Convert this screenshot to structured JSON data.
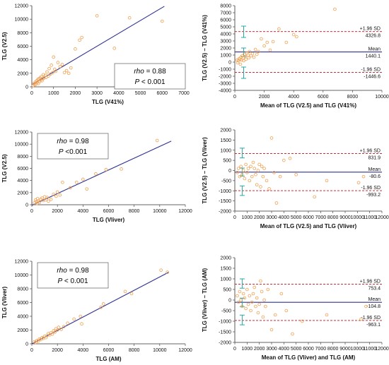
{
  "colors": {
    "line": "#2e3192",
    "points": "#f0a050",
    "sd_line": "#c0121c",
    "ci_bar": "#2aa7a0",
    "axis": "#333333",
    "background": "#ffffff"
  },
  "chart_data": [
    {
      "id": "scatter-1",
      "type": "scatter",
      "xlabel": "TLG (V41%)",
      "ylabel": "TLG (V2.5)",
      "xlim": [
        0,
        7000
      ],
      "ylim": [
        0,
        12000
      ],
      "xticks": [
        "0",
        "1000",
        "2000",
        "3000",
        "4000",
        "5000",
        "6000",
        "7000"
      ],
      "yticks": [
        "0",
        "2000",
        "4000",
        "6000",
        "8000",
        "10000",
        "12000"
      ],
      "annotation": {
        "rho_label": "rho",
        "rho_value": "= 0.88",
        "p_label": "P",
        "p_value": "< 0.001"
      },
      "regression": {
        "x": [
          0,
          6100
        ],
        "y": [
          300,
          11900
        ]
      },
      "points": {
        "x": [
          60,
          100,
          140,
          160,
          190,
          220,
          250,
          280,
          300,
          330,
          360,
          380,
          400,
          430,
          470,
          500,
          530,
          560,
          620,
          660,
          700,
          760,
          800,
          860,
          900,
          960,
          1000,
          1050,
          1100,
          1200,
          1300,
          1400,
          1500,
          1600,
          1700,
          1800,
          2000,
          2200,
          2300,
          3000,
          3800,
          4500,
          6000
        ],
        "y": [
          200,
          500,
          300,
          700,
          400,
          900,
          650,
          1100,
          500,
          1200,
          800,
          1300,
          1000,
          1500,
          900,
          1200,
          1800,
          1300,
          1700,
          1400,
          2200,
          1600,
          2700,
          1900,
          3200,
          2100,
          4400,
          2600,
          2300,
          3600,
          3000,
          3300,
          2100,
          2400,
          2000,
          2800,
          5600,
          6900,
          7300,
          10500,
          5700,
          10200,
          9700
        ]
      }
    },
    {
      "id": "ba-1",
      "type": "scatter",
      "xlabel": "Mean of TLG (V2.5) and TLG (V41%)",
      "ylabel": "TLG (V2.5) – TLG (V41%)",
      "xlim": [
        0,
        10000
      ],
      "ylim": [
        -4000,
        8000
      ],
      "xticks": [
        "0",
        "2000",
        "4000",
        "6000",
        "8000",
        "10000"
      ],
      "yticks": [
        "-4000",
        "-3000",
        "-2000",
        "-1000",
        "0",
        "1000",
        "2000",
        "3000",
        "4000",
        "5000",
        "6000",
        "7000",
        "8000"
      ],
      "mean": 1440.1,
      "upper": 4326.8,
      "lower": -1446.6,
      "labels": {
        "upper_name": "+1.96 SD",
        "upper_value": "4326.8",
        "mean_name": "Mean",
        "mean_value": "1440.1",
        "lower_name": "-1.96 SD",
        "lower_value": "-1446.6"
      },
      "ci_x": 600,
      "ci": [
        [
          3500,
          5100
        ],
        [
          800,
          2000
        ],
        [
          -2300,
          -700
        ]
      ],
      "points": {
        "x": [
          150,
          200,
          250,
          300,
          350,
          380,
          420,
          460,
          500,
          560,
          600,
          650,
          700,
          760,
          820,
          900,
          950,
          1000,
          1100,
          1200,
          1300,
          1400,
          1500,
          1600,
          1800,
          2000,
          2200,
          2400,
          2600,
          3000,
          3500,
          4000,
          4200,
          6800
        ],
        "y": [
          300,
          -100,
          200,
          500,
          400,
          -300,
          700,
          300,
          900,
          600,
          200,
          1100,
          800,
          400,
          1300,
          1000,
          600,
          1500,
          900,
          1200,
          700,
          1800,
          1100,
          1500,
          3300,
          2300,
          2800,
          1700,
          2900,
          4700,
          2800,
          3900,
          3600,
          7500
        ]
      }
    },
    {
      "id": "scatter-2",
      "type": "scatter",
      "xlabel": "TLG (Vliver)",
      "ylabel": "TLG (V2.5)",
      "xlim": [
        0,
        12000
      ],
      "ylim": [
        0,
        12000
      ],
      "xticks": [
        "0",
        "2000",
        "4000",
        "6000",
        "8000",
        "10000",
        "12000"
      ],
      "yticks": [
        "0",
        "2000",
        "4000",
        "6000",
        "8000",
        "10000",
        "12000"
      ],
      "annotation": {
        "rho_label": "rho",
        "rho_value": "= 0.98",
        "p_label": "P",
        "p_value": "<0.001"
      },
      "regression": {
        "x": [
          0,
          10900
        ],
        "y": [
          -100,
          10500
        ]
      },
      "points": {
        "x": [
          200,
          300,
          350,
          400,
          450,
          500,
          600,
          700,
          800,
          900,
          1000,
          1100,
          1200,
          1300,
          1500,
          1700,
          1900,
          2000,
          2200,
          2400,
          3000,
          3500,
          4000,
          4300,
          5000,
          5800,
          7000,
          9800
        ],
        "y": [
          300,
          800,
          500,
          200,
          1000,
          600,
          400,
          900,
          1100,
          700,
          1300,
          800,
          1200,
          600,
          900,
          1700,
          1400,
          2100,
          1600,
          3700,
          2800,
          3700,
          4200,
          2600,
          5100,
          5800,
          5900,
          10600
        ]
      }
    },
    {
      "id": "ba-2",
      "type": "scatter",
      "xlabel": "Mean of TLG (V2.5) and TLG (Vliver)",
      "ylabel": "TLG (V2.5) – TLG (Vliver)",
      "xlim": [
        0,
        12000
      ],
      "ylim": [
        -2000,
        2000
      ],
      "xticks": [
        "0",
        "1000",
        "2000",
        "3000",
        "4000",
        "5000",
        "6000",
        "7000",
        "8000",
        "9000",
        "10000",
        "11000",
        "12000"
      ],
      "yticks": [
        "-2000",
        "-1500",
        "-1000",
        "-500",
        "0",
        "500",
        "1000",
        "1500",
        "2000"
      ],
      "mean": -80.6,
      "upper": 831.9,
      "lower": -993.2,
      "labels": {
        "upper_name": "+1.96 SD",
        "upper_value": "831.9",
        "mean_name": "Mean",
        "mean_value": "-80.6",
        "lower_name": "-1.96 SD",
        "lower_value": "-993.2"
      },
      "ci_x": 600,
      "ci": [
        [
          620,
          1100
        ],
        [
          -280,
          120
        ],
        [
          -1230,
          -760
        ]
      ],
      "points": {
        "x": [
          200,
          300,
          400,
          500,
          600,
          700,
          800,
          900,
          1000,
          1100,
          1200,
          1300,
          1400,
          1500,
          1600,
          1700,
          1800,
          1900,
          2000,
          2100,
          2200,
          2300,
          2400,
          2600,
          2800,
          3000,
          3200,
          3400,
          3700,
          4000,
          4500,
          5000,
          6500,
          7500,
          10100,
          10500
        ],
        "y": [
          -100,
          100,
          -300,
          200,
          -200,
          0,
          -400,
          300,
          -100,
          100,
          -500,
          200,
          -300,
          400,
          100,
          -200,
          -700,
          0,
          300,
          -800,
          200,
          -300,
          100,
          -500,
          -900,
          1600,
          -100,
          -1600,
          -300,
          500,
          600,
          -200,
          -1300,
          -500,
          -600,
          -300
        ]
      }
    },
    {
      "id": "scatter-3",
      "type": "scatter",
      "xlabel": "TLG (AM)",
      "ylabel": "TLG (Vliver)",
      "xlim": [
        0,
        12000
      ],
      "ylim": [
        0,
        12000
      ],
      "xticks": [
        "0",
        "2000",
        "4000",
        "6000",
        "8000",
        "10000",
        "12000"
      ],
      "yticks": [
        "0",
        "2000",
        "4000",
        "6000",
        "8000",
        "10000",
        "12000"
      ],
      "annotation": {
        "rho_label": "rho",
        "rho_value": "= 0.98",
        "p_label": "P",
        "p_value": "< 0.001"
      },
      "regression": {
        "x": [
          0,
          10700
        ],
        "y": [
          0,
          10400
        ]
      },
      "points": {
        "x": [
          200,
          300,
          400,
          500,
          600,
          700,
          800,
          900,
          1000,
          1100,
          1200,
          1300,
          1400,
          1500,
          1600,
          1700,
          1800,
          1900,
          2000,
          2100,
          2300,
          2500,
          2800,
          3300,
          3800,
          3900,
          5400,
          5600,
          7300,
          7800,
          10100,
          10600
        ],
        "y": [
          300,
          200,
          500,
          400,
          700,
          600,
          900,
          800,
          1100,
          900,
          1200,
          1500,
          1300,
          1600,
          1400,
          1900,
          1700,
          2200,
          2000,
          2400,
          2100,
          2500,
          3000,
          3600,
          4000,
          2900,
          5300,
          5800,
          7600,
          7300,
          10700,
          10400
        ]
      }
    },
    {
      "id": "ba-3",
      "type": "scatter",
      "xlabel": "Mean of TLG (Vliver) and TLG (AM)",
      "ylabel": "TLG (Vliver) – TLG (AM)",
      "xlim": [
        0,
        12000
      ],
      "ylim": [
        -2000,
        2000
      ],
      "xticks": [
        "0",
        "1000",
        "2000",
        "3000",
        "4000",
        "5000",
        "6000",
        "7000",
        "8000",
        "9000",
        "10000",
        "11000",
        "12000"
      ],
      "yticks": [
        "-2000",
        "-1500",
        "-1000",
        "-500",
        "0",
        "500",
        "1000",
        "1500",
        "2000"
      ],
      "mean": -104.8,
      "upper": 753.4,
      "lower": -963.1,
      "labels": {
        "upper_name": "+1.96 SD",
        "upper_value": "753.4",
        "mean_name": "Mean",
        "mean_value": "-104.8",
        "lower_name": "-1.96 SD",
        "lower_value": "-963.1"
      },
      "ci_x": 600,
      "ci": [
        [
          560,
          1000
        ],
        [
          -310,
          90
        ],
        [
          -1170,
          -710
        ]
      ],
      "points": {
        "x": [
          200,
          300,
          400,
          500,
          600,
          700,
          800,
          900,
          1000,
          1100,
          1200,
          1300,
          1400,
          1500,
          1600,
          1700,
          1800,
          1900,
          2000,
          2100,
          2200,
          2300,
          2400,
          2500,
          2700,
          3000,
          3300,
          3800,
          4200,
          4700,
          5500,
          7500,
          10300,
          10700
        ],
        "y": [
          200,
          -100,
          400,
          0,
          -300,
          300,
          100,
          -400,
          500,
          -200,
          200,
          -500,
          -100,
          300,
          600,
          -300,
          100,
          -600,
          -200,
          900,
          400,
          -800,
          0,
          -300,
          500,
          -1400,
          -700,
          300,
          -500,
          -1600,
          -1000,
          -700,
          -900,
          -300
        ]
      }
    }
  ]
}
